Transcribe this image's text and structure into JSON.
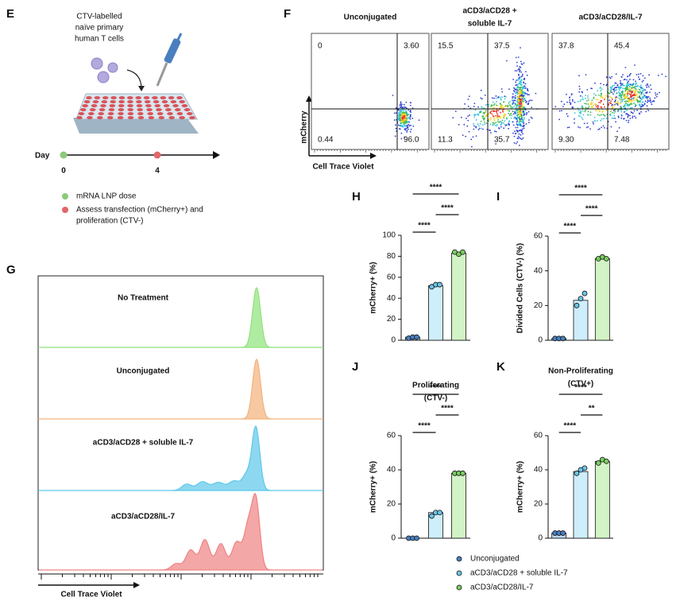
{
  "panel_e": {
    "letter": "E",
    "cells_label": [
      "CTV-labelled",
      "naïve primary",
      "human T cells"
    ],
    "day_label": "Day",
    "days": [
      "0",
      "4"
    ],
    "legend": [
      {
        "text": [
          "mRNA LNP dose"
        ],
        "color": "#8cc97a"
      },
      {
        "text": [
          "Assess transfection (mCherry+) and",
          "proliferation (CTV-)"
        ],
        "color": "#e0676b"
      }
    ]
  },
  "panel_f": {
    "letter": "F",
    "y_label": "mCherry",
    "x_label": "Cell Trace Violet",
    "plots": [
      {
        "title": [
          "Unconjugated"
        ],
        "quadrants": [
          "0",
          "3.60",
          "0.44",
          "96.0"
        ]
      },
      {
        "title": [
          "aCD3/aCD28 +",
          "soluble IL-7"
        ],
        "quadrants": [
          "15.5",
          "37.5",
          "11.3",
          "35.7"
        ]
      },
      {
        "title": [
          "aCD3/aCD28/IL-7"
        ],
        "quadrants": [
          "37.8",
          "45.4",
          "9.30",
          "7.48"
        ]
      }
    ]
  },
  "panel_g": {
    "letter": "G",
    "rows": [
      "No Treatment",
      "Unconjugated",
      "aCD3/aCD28 + soluble IL-7",
      "aCD3/aCD28/IL-7"
    ],
    "x_label": "Cell Trace Violet",
    "colors": [
      "#8fe27a",
      "#f4b27a",
      "#5cc8ea",
      "#f08282"
    ]
  },
  "legend": [
    {
      "name": "Unconjugated",
      "color": "#4a7fbf"
    },
    {
      "name": "aCD3/aCD28 + soluble IL-7",
      "color": "#6cc4e8"
    },
    {
      "name": "aCD3/aCD28/IL-7",
      "color": "#7ccc62"
    }
  ],
  "chart_data": [
    {
      "type": "bar",
      "letter": "H",
      "y_label": "mCherry+ (%)",
      "categories": [
        null,
        null,
        null
      ],
      "values": [
        3,
        52,
        83
      ],
      "points": [
        [
          2,
          3,
          3
        ],
        [
          51,
          53,
          53
        ],
        [
          84,
          82,
          84
        ]
      ],
      "colors": [
        "#bcd5ee",
        "#cdeefa",
        "#d2f3c6"
      ],
      "ylim": [
        0,
        100
      ],
      "yticks": [
        0,
        20,
        40,
        60,
        80,
        100
      ],
      "annotations": [
        "****",
        "****",
        "****"
      ]
    },
    {
      "type": "bar",
      "letter": "I",
      "y_label": "Divided Cells (CTV-) (%)",
      "categories": [
        null,
        null,
        null
      ],
      "values": [
        1,
        23,
        47
      ],
      "points": [
        [
          1,
          1,
          1
        ],
        [
          20,
          24,
          27
        ],
        [
          47,
          48,
          47
        ]
      ],
      "colors": [
        "#bcd5ee",
        "#cdeefa",
        "#d2f3c6"
      ],
      "ylim": [
        0,
        60
      ],
      "yticks": [
        0,
        20,
        40,
        60
      ],
      "annotations": [
        "****",
        "****",
        "****"
      ]
    },
    {
      "type": "bar",
      "letter": "J",
      "title": [
        "Proliferating",
        "(CTV-)"
      ],
      "y_label": "mCherry+ (%)",
      "categories": [
        null,
        null,
        null
      ],
      "values": [
        0,
        15,
        38
      ],
      "points": [
        [
          0,
          0,
          0
        ],
        [
          13,
          15,
          15
        ],
        [
          38,
          38,
          38
        ]
      ],
      "colors": [
        "#bcd5ee",
        "#cdeefa",
        "#d2f3c6"
      ],
      "ylim": [
        0,
        60
      ],
      "yticks": [
        0,
        20,
        40,
        60
      ],
      "annotations": [
        "****",
        "****",
        "****"
      ]
    },
    {
      "type": "bar",
      "letter": "K",
      "title": [
        "Non-Proliferating",
        "(CTV+)"
      ],
      "y_label": "mCherry+ (%)",
      "categories": [
        null,
        null,
        null
      ],
      "values": [
        3,
        39,
        45
      ],
      "points": [
        [
          3,
          3,
          3
        ],
        [
          38,
          40,
          41
        ],
        [
          44,
          46,
          45
        ]
      ],
      "colors": [
        "#bcd5ee",
        "#cdeefa",
        "#d2f3c6"
      ],
      "ylim": [
        0,
        60
      ],
      "yticks": [
        0,
        20,
        40,
        60
      ],
      "annotations": [
        "****",
        "**",
        "****"
      ]
    }
  ]
}
